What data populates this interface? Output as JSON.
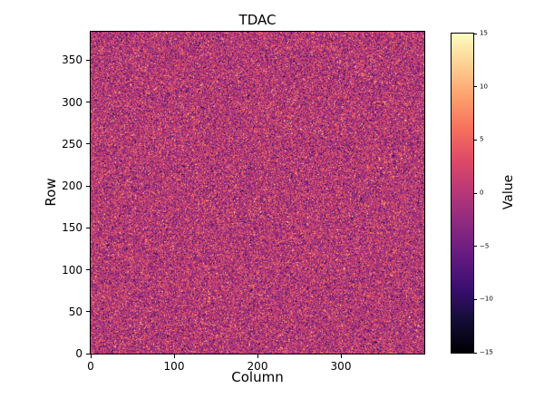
{
  "chart_data": {
    "type": "heatmap",
    "title": "TDAC",
    "xlabel": "Column",
    "ylabel": "Row",
    "colorbar_label": "Value",
    "x_range": [
      0,
      400
    ],
    "y_range": [
      0,
      384
    ],
    "x_ticks": [
      0,
      100,
      200,
      300
    ],
    "y_ticks": [
      0,
      50,
      100,
      150,
      200,
      250,
      300,
      350
    ],
    "colorbar_ticks": [
      15,
      10,
      5,
      0,
      -5,
      -10,
      -15
    ],
    "value_range": [
      -15,
      15
    ],
    "colormap": "magma",
    "colormap_stops": [
      "#000004",
      "#140e36",
      "#3b0f70",
      "#641a80",
      "#8c2981",
      "#b73779",
      "#de4968",
      "#f7705c",
      "#fe9f6d",
      "#fecf92",
      "#fcfdbf"
    ],
    "grid_on": false,
    "legend": "none",
    "data_summary": {
      "description": "per-pixel TDAC trim values; random speckle noise centered near 0 over a 400x384 pixel matrix",
      "grid": [
        400,
        384
      ],
      "mean": 0,
      "std": 4,
      "outlier_fraction": 0.05,
      "seed": 42
    }
  }
}
